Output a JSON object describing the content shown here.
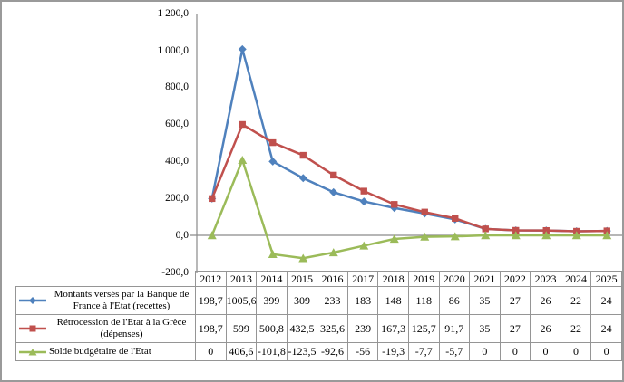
{
  "chart_data": {
    "type": "line",
    "title": "",
    "xlabel": "",
    "ylabel": "",
    "ylim": [
      -200,
      1200
    ],
    "ytick_step": 200,
    "grid": "zero-axis-line-only",
    "legend_position": "table-left",
    "axis_color": "#8a8a8a",
    "table_border_color": "#959595",
    "categories": [
      "2012",
      "2013",
      "2014",
      "2015",
      "2016",
      "2017",
      "2018",
      "2019",
      "2020",
      "2021",
      "2022",
      "2023",
      "2024",
      "2025"
    ],
    "yticks": [
      {
        "value": 1200,
        "label": "1 200,0"
      },
      {
        "value": 1000,
        "label": "1 000,0"
      },
      {
        "value": 800,
        "label": "800,0"
      },
      {
        "value": 600,
        "label": "600,0"
      },
      {
        "value": 400,
        "label": "400,0"
      },
      {
        "value": 200,
        "label": "200,0"
      },
      {
        "value": 0,
        "label": "0,0"
      },
      {
        "value": -200,
        "label": "-200,0"
      }
    ],
    "series": [
      {
        "name": "Montants versés par la Banque de France à l'Etat (recettes)",
        "marker": "diamond",
        "color": "#4f81bd",
        "values": [
          198.7,
          1005.6,
          399,
          309,
          233,
          183,
          148,
          118,
          86,
          35,
          27,
          26,
          22,
          24
        ],
        "display": [
          "198,7",
          "1005,6",
          "399",
          "309",
          "233",
          "183",
          "148",
          "118",
          "86",
          "35",
          "27",
          "26",
          "22",
          "24"
        ]
      },
      {
        "name": "Rétrocession de l'Etat à la Grèce (dépenses)",
        "marker": "square",
        "color": "#c0504d",
        "values": [
          198.7,
          599,
          500.8,
          432.5,
          325.6,
          239,
          167.3,
          125.7,
          91.7,
          35,
          27,
          26,
          22,
          24
        ],
        "display": [
          "198,7",
          "599",
          "500,8",
          "432,5",
          "325,6",
          "239",
          "167,3",
          "125,7",
          "91,7",
          "35",
          "27",
          "26",
          "22",
          "24"
        ]
      },
      {
        "name": "Solde budgétaire de l'Etat",
        "marker": "triangle",
        "color": "#9bbb59",
        "values": [
          0,
          406.6,
          -101.8,
          -123.5,
          -92.6,
          -56,
          -19.3,
          -7.7,
          -5.7,
          0,
          0,
          0,
          0,
          0
        ],
        "display": [
          "0",
          "406,6",
          "-101,8",
          "-123,5",
          "-92,6",
          "-56",
          "-19,3",
          "-7,7",
          "-5,7",
          "0",
          "0",
          "0",
          "0",
          "0"
        ]
      }
    ]
  }
}
